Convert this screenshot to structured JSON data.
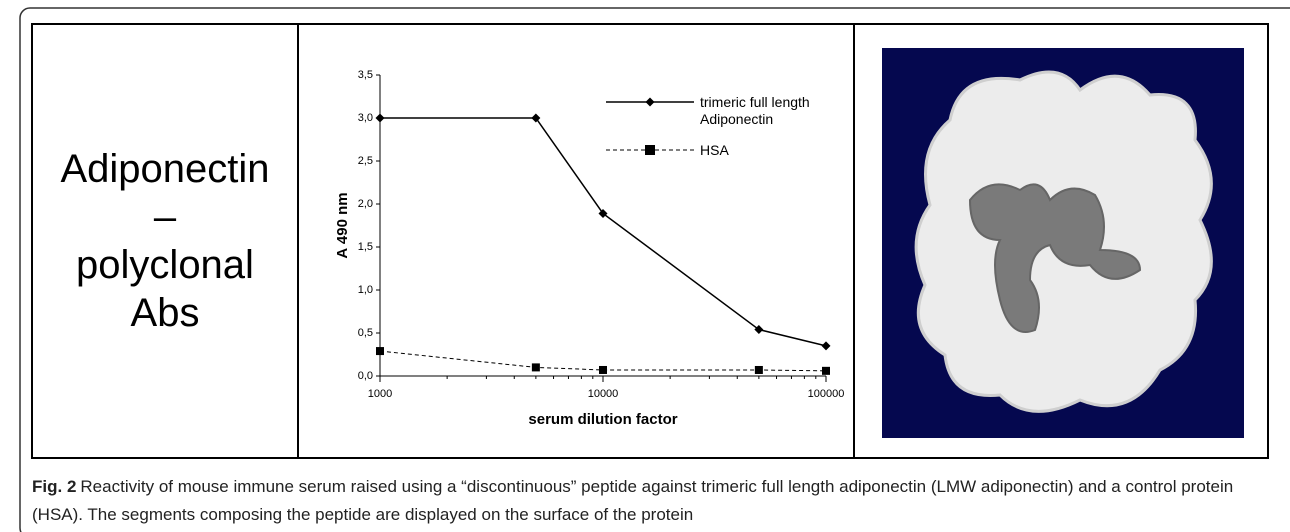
{
  "left_panel": {
    "lines": [
      "Adiponectin",
      "–",
      "polyclonal",
      "Abs"
    ]
  },
  "chart_data": {
    "type": "line",
    "x": [
      1000,
      5000,
      10000,
      50000,
      100000
    ],
    "xlim": [
      1000,
      100000
    ],
    "xscale": "log",
    "xticks": [
      1000,
      10000,
      100000
    ],
    "ylim": [
      0,
      3.5
    ],
    "yticks": [
      {
        "value": 0,
        "label": "0,0"
      },
      {
        "value": 0.5,
        "label": "0,5"
      },
      {
        "value": 1,
        "label": "1,0"
      },
      {
        "value": 1.5,
        "label": "1,5"
      },
      {
        "value": 2,
        "label": "2,0"
      },
      {
        "value": 2.5,
        "label": "2,5"
      },
      {
        "value": 3,
        "label": "3,0"
      },
      {
        "value": 3.5,
        "label": "3,5"
      }
    ],
    "xlabel": "serum dilution factor",
    "ylabel": "A 490 nm",
    "legend": "upper right",
    "series": [
      {
        "name": "trimeric full length Adiponectin",
        "color": "#000000",
        "dash": "solid",
        "marker": "diamond",
        "values": [
          3.0,
          3.0,
          1.89,
          0.54,
          0.35
        ]
      },
      {
        "name": "HSA",
        "color": "#000000",
        "dash": "dashed",
        "marker": "square",
        "values": [
          0.29,
          0.1,
          0.07,
          0.07,
          0.06
        ]
      }
    ]
  },
  "caption": {
    "label": "Fig. 2",
    "text": "Reactivity of mouse immune serum raised using a “discontinuous” peptide against trimeric full length adiponectin (LMW adiponectin) and a control protein (HSA). The segments composing the peptide are displayed on the surface of the protein"
  }
}
